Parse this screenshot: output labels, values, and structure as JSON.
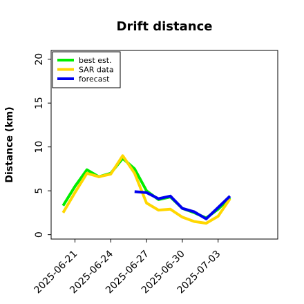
{
  "chart_data": {
    "type": "line",
    "title": "Drift distance",
    "xlabel": "",
    "ylabel": "Distance (km)",
    "x_tick_labels": [
      "2025-06-21",
      "2025-06-24",
      "2025-06-27",
      "2025-06-30",
      "2025-07-03"
    ],
    "y_ticks": [
      0,
      5,
      10,
      15,
      20
    ],
    "ylim": [
      -0.5,
      21
    ],
    "xlim": [
      "2025-06-19",
      "2025-07-08"
    ],
    "grid": false,
    "legend_position": "top-left",
    "series": [
      {
        "name": "best est.",
        "color": "#00ee00",
        "points": [
          [
            "2025-06-20",
            3.3
          ],
          [
            "2025-06-21",
            5.5
          ],
          [
            "2025-06-22",
            7.4
          ],
          [
            "2025-06-23",
            6.6
          ],
          [
            "2025-06-24",
            7.0
          ],
          [
            "2025-06-25",
            8.7
          ],
          [
            "2025-06-26",
            7.5
          ],
          [
            "2025-06-27",
            5.0
          ],
          [
            "2025-06-28",
            4.0
          ],
          [
            "2025-06-29",
            4.3
          ],
          [
            "2025-06-30",
            3.0
          ],
          [
            "2025-07-01",
            2.5
          ],
          [
            "2025-07-02",
            1.9
          ],
          [
            "2025-07-03",
            2.9
          ],
          [
            "2025-07-04",
            4.2
          ]
        ]
      },
      {
        "name": "SAR data",
        "color": "#ffd700",
        "points": [
          [
            "2025-06-20",
            2.5
          ],
          [
            "2025-06-21",
            4.8
          ],
          [
            "2025-06-22",
            7.0
          ],
          [
            "2025-06-23",
            6.6
          ],
          [
            "2025-06-24",
            6.9
          ],
          [
            "2025-06-25",
            9.0
          ],
          [
            "2025-06-26",
            7.0
          ],
          [
            "2025-06-27",
            3.6
          ],
          [
            "2025-06-28",
            2.8
          ],
          [
            "2025-06-29",
            2.9
          ],
          [
            "2025-06-30",
            2.0
          ],
          [
            "2025-07-01",
            1.5
          ],
          [
            "2025-07-02",
            1.3
          ],
          [
            "2025-07-03",
            2.1
          ],
          [
            "2025-07-04",
            4.1
          ]
        ]
      },
      {
        "name": "forecast",
        "color": "#0000ee",
        "points": [
          [
            "2025-06-26",
            4.9
          ],
          [
            "2025-06-27",
            4.8
          ],
          [
            "2025-06-28",
            4.1
          ],
          [
            "2025-06-29",
            4.4
          ],
          [
            "2025-06-30",
            3.0
          ],
          [
            "2025-07-01",
            2.6
          ],
          [
            "2025-07-02",
            1.8
          ],
          [
            "2025-07-03",
            3.1
          ],
          [
            "2025-07-04",
            4.4
          ]
        ]
      }
    ]
  }
}
